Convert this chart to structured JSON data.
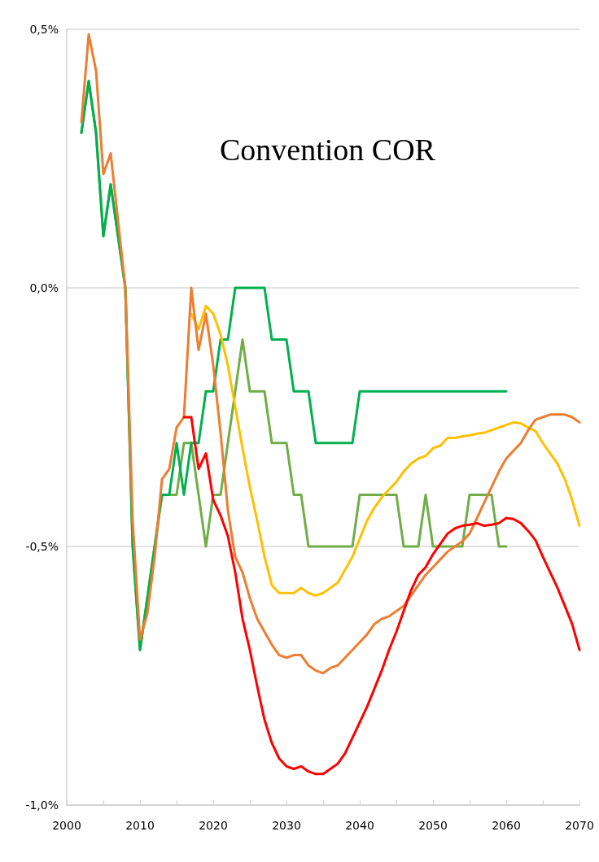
{
  "chart_data": {
    "type": "line",
    "title": "Convention COR",
    "marker": "none",
    "line_style": "solid",
    "grid": "y",
    "x": [
      2002,
      2003,
      2004,
      2005,
      2006,
      2007,
      2008,
      2009,
      2010,
      2011,
      2012,
      2013,
      2014,
      2015,
      2016,
      2017,
      2018,
      2019,
      2020,
      2021,
      2022,
      2023,
      2024,
      2025,
      2026,
      2027,
      2028,
      2029,
      2030,
      2031,
      2032,
      2033,
      2034,
      2035,
      2036,
      2037,
      2038,
      2039,
      2040,
      2041,
      2042,
      2043,
      2044,
      2045,
      2046,
      2047,
      2048,
      2049,
      2050,
      2051,
      2052,
      2053,
      2054,
      2055,
      2056,
      2057,
      2058,
      2059,
      2060,
      2061,
      2062,
      2063,
      2064,
      2065,
      2066,
      2067,
      2068,
      2069,
      2070
    ],
    "xlim": [
      2000,
      2070
    ],
    "xticks": [
      2000,
      {
        "value": 2005,
        "label": null
      },
      2010,
      {
        "value": 2015,
        "label": null
      },
      2020,
      {
        "value": 2025,
        "label": null
      },
      2030,
      {
        "value": 2035,
        "label": null
      },
      2040,
      {
        "value": 2045,
        "label": null
      },
      2050,
      {
        "value": 2055,
        "label": null
      },
      2060,
      {
        "value": 2065,
        "label": null
      },
      2070
    ],
    "ylim": [
      -1,
      0.5
    ],
    "yticks": [
      {
        "value": -1,
        "label": "-1,0%"
      },
      {
        "value": -0.5,
        "label": "-0,5%"
      },
      {
        "value": 0,
        "label": "0,0%"
      },
      {
        "value": 0.5,
        "label": "0,5%"
      }
    ],
    "series": [
      {
        "color": "#70ad47",
        "values": [
          0.3,
          0.4,
          0.3,
          0.1,
          0.2,
          0.1,
          0,
          -0.5,
          -0.7,
          -0.6,
          -0.5,
          -0.4,
          -0.4,
          -0.4,
          -0.3,
          -0.3,
          -0.4,
          -0.5,
          -0.4,
          -0.4,
          -0.3,
          -0.2,
          -0.1,
          -0.2,
          -0.2,
          -0.2,
          -0.3,
          -0.3,
          -0.3,
          -0.4,
          -0.4,
          -0.5,
          -0.5,
          -0.5,
          -0.5,
          -0.5,
          -0.5,
          -0.5,
          -0.4,
          -0.4,
          -0.4,
          -0.4,
          -0.4,
          -0.4,
          -0.5,
          -0.5,
          -0.5,
          -0.4,
          -0.5,
          -0.5,
          -0.5,
          -0.5,
          -0.5,
          -0.4,
          -0.4,
          -0.4,
          -0.4,
          -0.5,
          -0.5,
          null,
          null,
          null,
          null,
          null,
          null,
          null,
          null,
          null,
          null
        ]
      },
      {
        "color": "#00b050",
        "values": [
          0.3,
          0.4,
          0.3,
          0.1,
          0.2,
          0.1,
          0,
          -0.5,
          -0.7,
          -0.6,
          -0.5,
          -0.4,
          -0.4,
          -0.3,
          -0.4,
          -0.3,
          -0.3,
          -0.2,
          -0.2,
          -0.1,
          -0.1,
          0,
          0,
          0,
          0,
          0,
          -0.1,
          -0.1,
          -0.1,
          -0.2,
          -0.2,
          -0.2,
          -0.3,
          -0.3,
          -0.3,
          -0.3,
          -0.3,
          -0.3,
          -0.2,
          -0.2,
          -0.2,
          -0.2,
          -0.2,
          -0.2,
          -0.2,
          -0.2,
          -0.2,
          -0.2,
          -0.2,
          -0.2,
          -0.2,
          -0.2,
          -0.2,
          -0.2,
          -0.2,
          -0.2,
          -0.2,
          -0.2,
          -0.2,
          null,
          null,
          null,
          null,
          null,
          null,
          null,
          null,
          null,
          null
        ]
      },
      {
        "color": "#ffc000",
        "values": [
          null,
          null,
          null,
          null,
          null,
          null,
          null,
          null,
          null,
          null,
          null,
          null,
          null,
          null,
          null,
          -0.05,
          -0.08,
          -0.035,
          -0.05,
          -0.09,
          -0.15,
          -0.23,
          -0.31,
          -0.385,
          -0.45,
          -0.52,
          -0.575,
          -0.59,
          -0.59,
          -0.59,
          -0.58,
          -0.59,
          -0.595,
          -0.59,
          -0.58,
          -0.57,
          -0.545,
          -0.52,
          -0.485,
          -0.45,
          -0.425,
          -0.405,
          -0.39,
          -0.375,
          -0.355,
          -0.34,
          -0.33,
          -0.325,
          -0.31,
          -0.305,
          -0.29,
          -0.29,
          -0.287,
          -0.285,
          -0.282,
          -0.28,
          -0.275,
          -0.27,
          -0.265,
          -0.26,
          -0.262,
          -0.27,
          -0.277,
          -0.3,
          -0.32,
          -0.34,
          -0.37,
          -0.41,
          -0.46
        ]
      },
      {
        "color": "#ed7d31",
        "values": [
          0.32,
          0.49,
          0.42,
          0.22,
          0.26,
          0.13,
          0,
          -0.45,
          -0.68,
          -0.63,
          -0.52,
          -0.37,
          -0.35,
          -0.27,
          -0.25,
          0,
          -0.12,
          -0.05,
          -0.15,
          -0.28,
          -0.43,
          -0.52,
          -0.55,
          -0.6,
          -0.64,
          -0.665,
          -0.69,
          -0.71,
          -0.715,
          -0.71,
          -0.71,
          -0.73,
          -0.74,
          -0.745,
          -0.735,
          -0.73,
          -0.715,
          -0.7,
          -0.685,
          -0.67,
          -0.65,
          -0.64,
          -0.635,
          -0.625,
          -0.615,
          -0.595,
          -0.575,
          -0.555,
          -0.54,
          -0.525,
          -0.51,
          -0.5,
          -0.49,
          -0.475,
          -0.445,
          -0.415,
          -0.385,
          -0.355,
          -0.33,
          -0.315,
          -0.3,
          -0.275,
          -0.255,
          -0.25,
          -0.245,
          -0.245,
          -0.245,
          -0.25,
          -0.26
        ]
      },
      {
        "color": "#ff0000",
        "values": [
          null,
          null,
          null,
          null,
          null,
          null,
          null,
          null,
          null,
          null,
          null,
          null,
          null,
          null,
          -0.25,
          -0.25,
          -0.35,
          -0.32,
          -0.41,
          -0.44,
          -0.48,
          -0.55,
          -0.64,
          -0.7,
          -0.77,
          -0.835,
          -0.88,
          -0.91,
          -0.925,
          -0.93,
          -0.925,
          -0.935,
          -0.94,
          -0.94,
          -0.93,
          -0.92,
          -0.9,
          -0.87,
          -0.84,
          -0.81,
          -0.775,
          -0.74,
          -0.7,
          -0.665,
          -0.625,
          -0.585,
          -0.555,
          -0.54,
          -0.515,
          -0.495,
          -0.475,
          -0.465,
          -0.46,
          -0.458,
          -0.455,
          -0.46,
          -0.458,
          -0.455,
          -0.445,
          -0.447,
          -0.455,
          -0.47,
          -0.488,
          -0.52,
          -0.55,
          -0.58,
          -0.615,
          -0.65,
          -0.7
        ]
      }
    ]
  }
}
